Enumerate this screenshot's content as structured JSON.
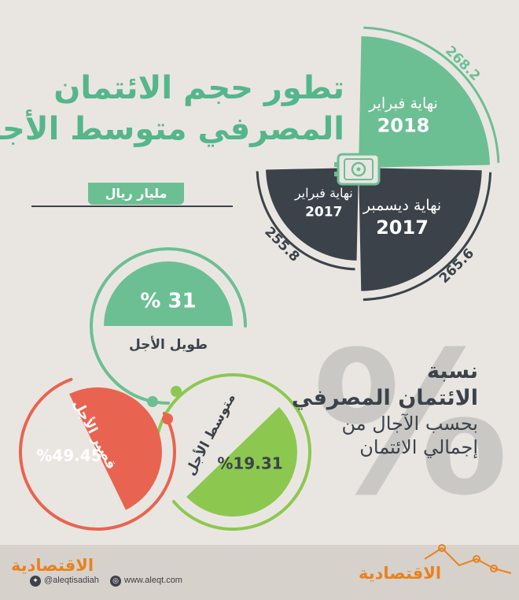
{
  "title": {
    "line1": "تطور حجم الائتمان",
    "line2": "المصرفي متوسط الأجل"
  },
  "unit": "مليار ريال",
  "chart_data": [
    {
      "type": "radial-bar",
      "categories": [
        {
          "period": "نهاية فبراير",
          "year": "2018",
          "value": 268.2,
          "color": "#6cbf93"
        },
        {
          "period": "نهاية ديسمبر",
          "year": "2017",
          "value": 265.6,
          "color": "#3b424a"
        },
        {
          "period": "نهاية فبراير",
          "year": "2017",
          "value": 255.8,
          "color": "#3b424a"
        }
      ],
      "value_labels": [
        "268.2",
        "265.6",
        "255.8"
      ]
    },
    {
      "type": "pie",
      "title_lines": [
        "نسبة",
        "الائتمان المصرفي",
        "بحسب الآجال من",
        "إجمالي الائتمان"
      ],
      "background_glyph": "%",
      "slices": [
        {
          "label": "طويل الأجل",
          "value": 31,
          "value_label": "% 31",
          "color": "#6cbf93"
        },
        {
          "label": "متوسط الأجل",
          "value": 19.31,
          "value_label": "%19.31",
          "color": "#8cc84f"
        },
        {
          "label": "قصير الأجل",
          "value": 49.45,
          "value_label": "%49.45",
          "color": "#e96450"
        }
      ]
    }
  ],
  "footer": {
    "logo_left": "الاقتصادية",
    "twitter": "@aleqtisadiah",
    "website": "www.aleqt.com",
    "logo_right": "الاقتصادية"
  }
}
